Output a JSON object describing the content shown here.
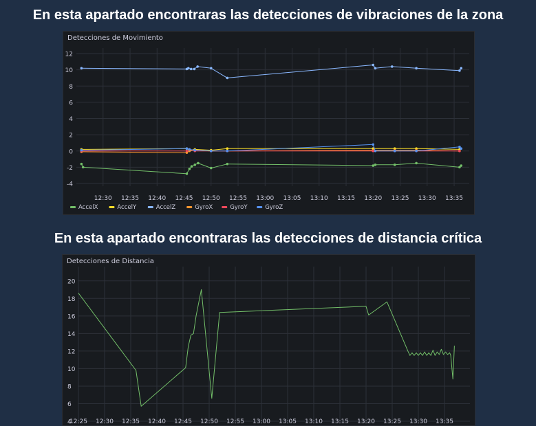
{
  "headings": {
    "vibraciones": "En esta apartado encontraras las detecciones de vibraciones de la zona",
    "distancia": "En esta apartado encontraras las detecciones de distancia crítica"
  },
  "panels": {
    "movimiento_title": "Detecciones de Movimiento",
    "distancia_title": "Detecciones de Distancia"
  },
  "chart_data": [
    {
      "type": "line",
      "title": "Detecciones de Movimiento",
      "ylim": [
        -4,
        12
      ],
      "yticks": [
        "12",
        "10",
        "8",
        "6",
        "4",
        "2",
        "0",
        "-2",
        "-4"
      ],
      "xticks": [
        "12:30",
        "12:35",
        "12:40",
        "12:45",
        "12:50",
        "12:55",
        "13:00",
        "13:05",
        "13:10",
        "13:15",
        "13:20",
        "13:25",
        "13:30",
        "13:35"
      ],
      "grid": true,
      "legend_position": "bottom-left",
      "series": [
        {
          "name": "AccelX",
          "color": "#73bf69",
          "points": [
            [
              26,
              -1.6
            ],
            [
              26.3,
              -2.0
            ],
            [
              45.5,
              -2.8
            ],
            [
              46,
              -2.2
            ],
            [
              46.4,
              -1.9
            ],
            [
              47,
              -1.7
            ],
            [
              47.6,
              -1.5
            ],
            [
              50,
              -2.1
            ],
            [
              53,
              -1.6
            ],
            [
              80,
              -1.8
            ],
            [
              80.4,
              -1.7
            ],
            [
              84,
              -1.7
            ],
            [
              88,
              -1.5
            ],
            [
              96,
              -2.0
            ],
            [
              96.3,
              -1.8
            ]
          ],
          "markers": true
        },
        {
          "name": "AccelY",
          "color": "#fade2a",
          "points": [
            [
              26,
              0.2
            ],
            [
              45.5,
              0.3
            ],
            [
              46,
              0.1
            ],
            [
              47,
              0.2
            ],
            [
              50,
              0.1
            ],
            [
              53,
              0.3
            ],
            [
              80,
              0.3
            ],
            [
              84,
              0.3
            ],
            [
              88,
              0.3
            ],
            [
              96,
              0.2
            ]
          ],
          "markers": true
        },
        {
          "name": "AccelZ",
          "color": "#8ab8ff",
          "points": [
            [
              26,
              10.2
            ],
            [
              45.5,
              10.1
            ],
            [
              45.8,
              10.2
            ],
            [
              46.3,
              10.1
            ],
            [
              46.9,
              10.1
            ],
            [
              47.5,
              10.4
            ],
            [
              50,
              10.2
            ],
            [
              53,
              9.0
            ],
            [
              80,
              10.6
            ],
            [
              80.4,
              10.2
            ],
            [
              83.5,
              10.4
            ],
            [
              88,
              10.2
            ],
            [
              96,
              9.9
            ],
            [
              96.3,
              10.2
            ]
          ],
          "markers": true
        },
        {
          "name": "GyroX",
          "color": "#ff9830",
          "points": [
            [
              26,
              -0.1
            ],
            [
              45.5,
              -0.2
            ],
            [
              46,
              0.0
            ],
            [
              47,
              0.1
            ],
            [
              50,
              0.0
            ],
            [
              53,
              0.0
            ],
            [
              80,
              0.1
            ],
            [
              84,
              0.1
            ],
            [
              88,
              0.1
            ],
            [
              96,
              0.0
            ]
          ],
          "markers": true
        },
        {
          "name": "GyroY",
          "color": "#f2495c",
          "points": [
            [
              26,
              0.0
            ],
            [
              45.5,
              0.0
            ],
            [
              46,
              0.2
            ],
            [
              47,
              0.0
            ],
            [
              50,
              0.0
            ],
            [
              53,
              0.0
            ],
            [
              80,
              0.0
            ],
            [
              84,
              0.0
            ],
            [
              88,
              0.0
            ],
            [
              96,
              0.0
            ]
          ],
          "markers": true
        },
        {
          "name": "GyroZ",
          "color": "#5794f2",
          "points": [
            [
              26,
              0.1
            ],
            [
              45.5,
              0.3
            ],
            [
              46,
              0.2
            ],
            [
              47,
              0.1
            ],
            [
              50,
              0.0
            ],
            [
              53,
              0.0
            ],
            [
              80,
              0.8
            ],
            [
              80.4,
              0.0
            ],
            [
              84,
              0.0
            ],
            [
              88,
              0.0
            ],
            [
              96,
              0.5
            ],
            [
              96.3,
              0.3
            ]
          ],
          "markers": true
        }
      ]
    },
    {
      "type": "line",
      "title": "Detecciones de Distancia",
      "ylim": [
        4,
        21
      ],
      "yticks": [
        "20",
        "18",
        "16",
        "14",
        "12",
        "10",
        "8",
        "6",
        "4"
      ],
      "xticks": [
        "12:25",
        "12:30",
        "12:35",
        "12:40",
        "12:45",
        "12:50",
        "12:55",
        "13:00",
        "13:05",
        "13:10",
        "13:15",
        "13:20",
        "13:25",
        "13:30",
        "13:35"
      ],
      "grid": true,
      "series": [
        {
          "name": "",
          "color": "#73bf69",
          "points": [
            [
              25,
              18.6
            ],
            [
              36,
              9.8
            ],
            [
              37,
              5.7
            ],
            [
              45.5,
              10.1
            ],
            [
              46,
              12.5
            ],
            [
              46.5,
              13.8
            ],
            [
              47,
              14.0
            ],
            [
              47.5,
              16.0
            ],
            [
              48.5,
              19.0
            ],
            [
              50.5,
              6.6
            ],
            [
              52,
              16.4
            ],
            [
              80,
              17.1
            ],
            [
              80.5,
              16.1
            ],
            [
              84,
              17.6
            ],
            [
              88,
              12.0
            ],
            [
              88.4,
              11.5
            ],
            [
              88.8,
              11.8
            ],
            [
              89.2,
              11.5
            ],
            [
              89.6,
              11.8
            ],
            [
              90,
              11.5
            ],
            [
              90.4,
              11.8
            ],
            [
              90.8,
              11.5
            ],
            [
              91.2,
              11.9
            ],
            [
              91.6,
              11.5
            ],
            [
              92,
              11.8
            ],
            [
              92.4,
              11.5
            ],
            [
              92.8,
              12.1
            ],
            [
              93.2,
              11.5
            ],
            [
              93.6,
              11.9
            ],
            [
              94,
              11.6
            ],
            [
              94.4,
              12.2
            ],
            [
              94.8,
              11.6
            ],
            [
              95.2,
              11.9
            ],
            [
              95.6,
              11.6
            ],
            [
              96,
              11.8
            ],
            [
              96.2,
              11.5
            ],
            [
              96.6,
              8.8
            ],
            [
              96.9,
              12.6
            ]
          ],
          "markers": false
        }
      ]
    }
  ]
}
